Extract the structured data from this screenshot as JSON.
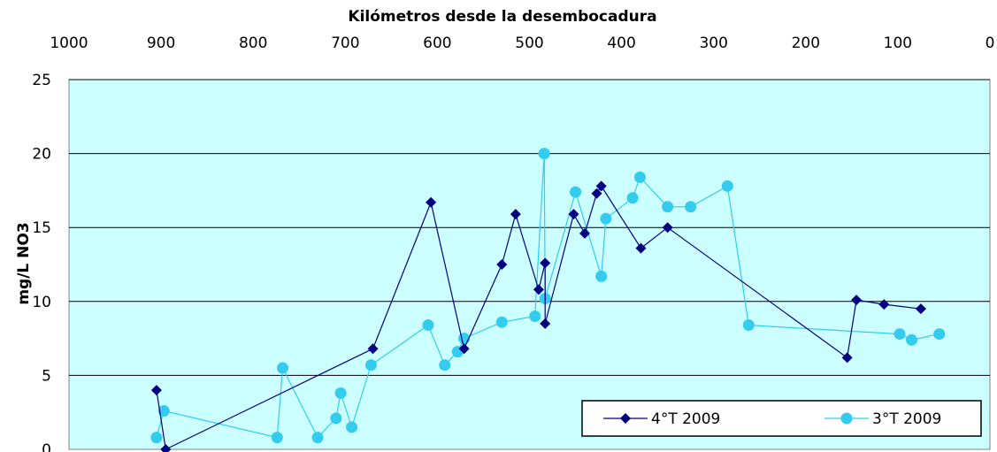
{
  "chart_data": {
    "type": "line",
    "title": "",
    "xlabel": "Kilómetros desde la desembocadura",
    "ylabel": "mg/L NO3",
    "xlim": [
      1000,
      0
    ],
    "ylim": [
      0,
      25
    ],
    "x_axis_position": "top",
    "x_reversed": true,
    "xticks": [
      "1000",
      "900",
      "800",
      "700",
      "600",
      "500",
      "400",
      "300",
      "200",
      "100",
      "0"
    ],
    "yticks": [
      "0",
      "5",
      "10",
      "15",
      "20",
      "25"
    ],
    "grid": "horizontal",
    "plot_background": "#ccffff",
    "legend_position": "bottom-right",
    "series": [
      {
        "name": "4°T 2009",
        "color": "#000080",
        "marker": "diamond",
        "x": [
          905,
          895,
          670,
          607,
          571,
          530,
          515,
          490,
          483,
          483,
          452,
          440,
          427,
          422,
          379,
          350,
          155,
          145,
          115,
          75
        ],
        "y": [
          4.0,
          0.0,
          6.8,
          16.7,
          6.8,
          12.5,
          15.9,
          10.8,
          12.6,
          8.5,
          15.9,
          14.6,
          17.3,
          17.8,
          13.6,
          15.0,
          6.2,
          10.1,
          9.8,
          9.5
        ]
      },
      {
        "name": "3°T 2009",
        "color": "#33ccee",
        "marker": "circle",
        "x": [
          905,
          897,
          774,
          768,
          730,
          710,
          705,
          693,
          672,
          610,
          592,
          578,
          571,
          530,
          494,
          484,
          483,
          450,
          422,
          417,
          388,
          380,
          350,
          325,
          285,
          262,
          98,
          85,
          55
        ],
        "y": [
          0.8,
          2.6,
          0.8,
          5.5,
          0.8,
          2.1,
          3.8,
          1.5,
          5.7,
          8.4,
          5.7,
          6.6,
          7.5,
          8.6,
          9.0,
          20.0,
          10.2,
          17.4,
          11.7,
          15.6,
          17.0,
          18.4,
          16.4,
          16.4,
          17.8,
          8.4,
          7.8,
          7.4,
          7.8
        ]
      }
    ]
  }
}
